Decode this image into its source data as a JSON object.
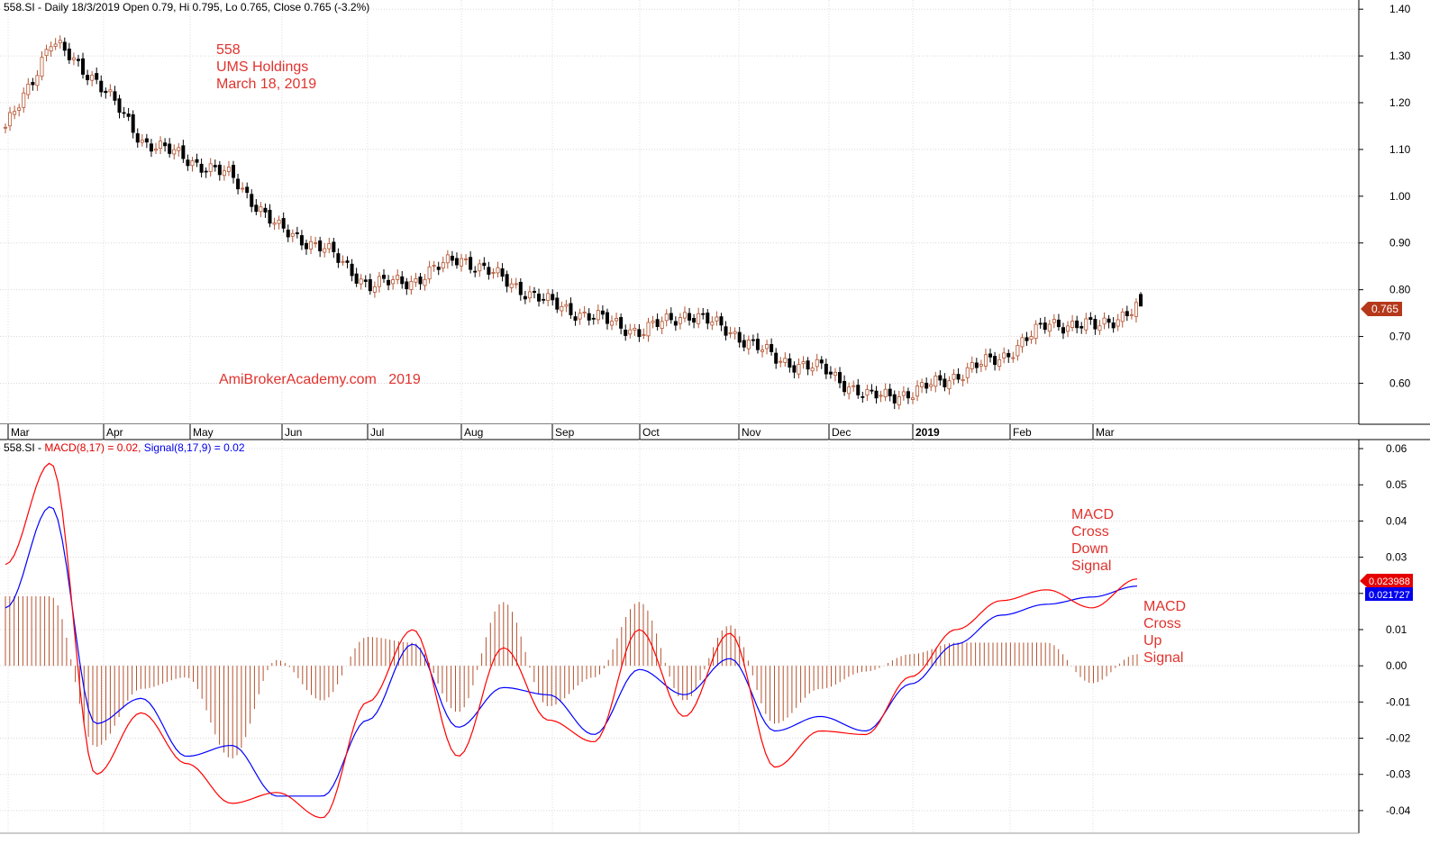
{
  "price_panel": {
    "header": "558.SI - Daily 18/3/2019 Open 0.79, Hi 0.795, Lo 0.765, Close 0.765 (-3.2%)",
    "annotations": {
      "line1": "558",
      "line2": "UMS Holdings",
      "line3": "March 18, 2019",
      "watermark": "AmiBrokerAcademy.com   2019"
    },
    "last_price_label": "0.765",
    "y_ticks": [
      "1.40",
      "1.30",
      "1.20",
      "1.10",
      "1.00",
      "0.90",
      "0.80",
      "0.70",
      "0.60"
    ]
  },
  "macd_panel": {
    "header_prefix": "558.SI - ",
    "header_macd": "MACD(8,17) = 0.02, ",
    "header_signal": "Signal(8,17,9) = 0.02",
    "macd_value_label": "0.023988",
    "signal_value_label": "0.021727",
    "annotation_down": [
      "MACD",
      "Cross",
      "Down",
      "Signal"
    ],
    "annotation_up": [
      "MACD",
      "Cross",
      "Up",
      "Signal"
    ],
    "y_ticks": [
      "0.06",
      "0.05",
      "0.04",
      "0.03",
      "0.02",
      "0.01",
      "0.00",
      "-0.01",
      "-0.02",
      "-0.03",
      "-0.04"
    ]
  },
  "x_labels": [
    "Mar",
    "Apr",
    "May",
    "Jun",
    "Jul",
    "Aug",
    "Sep",
    "Oct",
    "Nov",
    "Dec",
    "2019",
    "Feb",
    "Mar"
  ],
  "colors": {
    "up_candle": "#b5532f",
    "down_candle": "#000000",
    "macd": "#ff0000",
    "signal": "#0000ff",
    "histogram": "#b5532f",
    "annotation": "#e0332e",
    "macd_label_bg": "#e60000",
    "signal_label_bg": "#0000ee",
    "price_label_bg": "#b5381a"
  },
  "chart_data": [
    {
      "type": "candlestick",
      "title": "558.SI - Daily 18/3/2019 Open 0.79, Hi 0.795, Lo 0.765, Close 0.765 (-3.2%)",
      "ylim": [
        0.52,
        1.41
      ],
      "x": [
        "Mar",
        "Mar",
        "Apr",
        "Apr",
        "May",
        "May",
        "Jun",
        "Jun",
        "Jul",
        "Jul",
        "Aug",
        "Aug",
        "Sep",
        "Sep",
        "Oct",
        "Oct",
        "Nov",
        "Nov",
        "Dec",
        "Dec",
        "2019",
        "2019",
        "Feb",
        "Feb",
        "Mar",
        "Mar"
      ],
      "close": [
        1.14,
        1.33,
        1.25,
        1.12,
        1.08,
        1.04,
        0.93,
        0.89,
        0.81,
        0.82,
        0.87,
        0.82,
        0.77,
        0.74,
        0.71,
        0.75,
        0.71,
        0.65,
        0.63,
        0.57,
        0.58,
        0.62,
        0.66,
        0.73,
        0.72,
        0.765
      ],
      "series": [
        {
          "name": "close",
          "values": [
            1.14,
            1.33,
            1.25,
            1.12,
            1.08,
            1.04,
            0.93,
            0.89,
            0.81,
            0.82,
            0.87,
            0.82,
            0.77,
            0.74,
            0.71,
            0.75,
            0.71,
            0.65,
            0.63,
            0.57,
            0.58,
            0.62,
            0.66,
            0.73,
            0.72,
            0.765
          ]
        }
      ],
      "last": {
        "open": 0.79,
        "high": 0.795,
        "low": 0.765,
        "close": 0.765,
        "change_pct": -3.2
      }
    },
    {
      "type": "line",
      "title": "558.SI - MACD(8,17) = 0.02, Signal(8,17,9) = 0.02",
      "ylim": [
        -0.045,
        0.062
      ],
      "x": [
        "Mar",
        "Mar",
        "Apr",
        "Apr",
        "May",
        "May",
        "Jun",
        "Jun",
        "Jul",
        "Jul",
        "Aug",
        "Aug",
        "Sep",
        "Sep",
        "Oct",
        "Oct",
        "Nov",
        "Nov",
        "Dec",
        "Dec",
        "2019",
        "2019",
        "Feb",
        "Feb",
        "Mar",
        "Mar"
      ],
      "series": [
        {
          "name": "MACD(8,17)",
          "values": [
            0.028,
            0.056,
            -0.03,
            -0.013,
            -0.027,
            -0.038,
            -0.035,
            -0.042,
            -0.01,
            0.01,
            -0.025,
            0.005,
            -0.015,
            -0.021,
            0.01,
            -0.014,
            0.009,
            -0.028,
            -0.018,
            -0.019,
            -0.003,
            0.01,
            0.018,
            0.021,
            0.016,
            0.024
          ]
        },
        {
          "name": "Signal(8,17,9)",
          "values": [
            0.016,
            0.044,
            -0.016,
            -0.009,
            -0.025,
            -0.022,
            -0.036,
            -0.036,
            -0.015,
            0.006,
            -0.017,
            -0.006,
            -0.008,
            -0.019,
            -0.001,
            -0.008,
            0.002,
            -0.018,
            -0.014,
            -0.018,
            -0.005,
            0.006,
            0.014,
            0.017,
            0.019,
            0.022
          ]
        }
      ],
      "last": {
        "macd": 0.023988,
        "signal": 0.021727
      }
    }
  ]
}
